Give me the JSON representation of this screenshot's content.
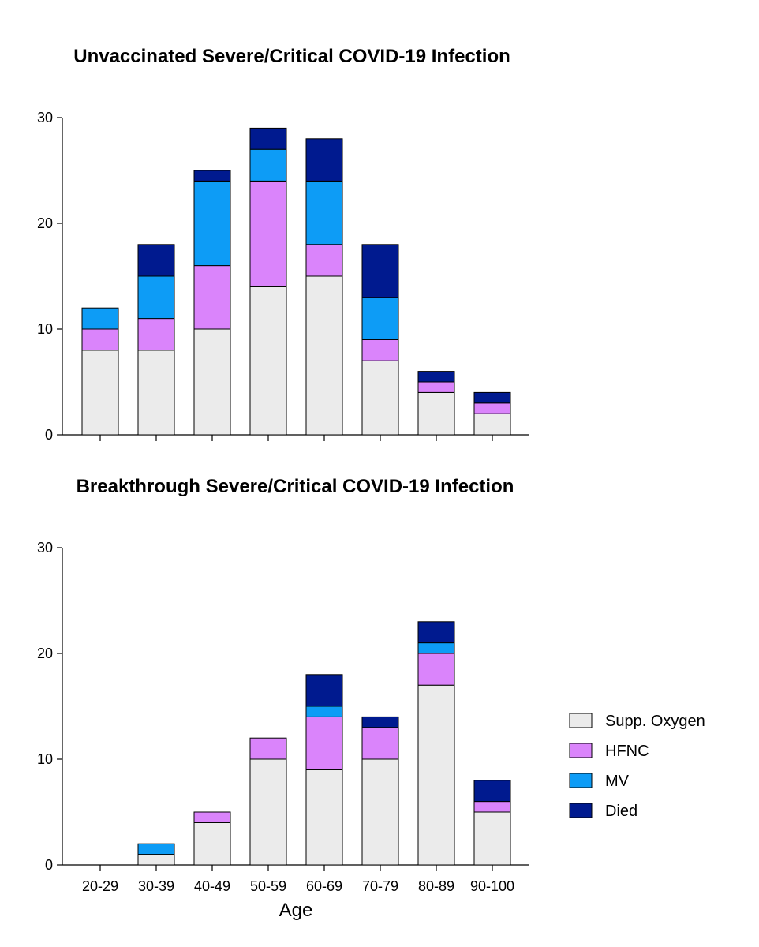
{
  "chart_data": [
    {
      "type": "bar",
      "stacked": true,
      "title": "Unvaccinated Severe/Critical COVID-19 Infection",
      "categories": [
        "20-29",
        "30-39",
        "40-49",
        "50-59",
        "60-69",
        "70-79",
        "80-89",
        "90-100"
      ],
      "show_category_labels": false,
      "ylim": [
        0,
        30
      ],
      "yticks": [
        0,
        10,
        20,
        30
      ],
      "xlabel": "",
      "ylabel": "",
      "grid": false,
      "series": [
        {
          "name": "Supp. Oxygen",
          "color": "#ebebeb",
          "values": [
            8,
            8,
            10,
            14,
            15,
            7,
            4,
            2
          ]
        },
        {
          "name": "HFNC",
          "color": "#da84fb",
          "values": [
            2,
            3,
            6,
            10,
            3,
            2,
            1,
            1
          ]
        },
        {
          "name": "MV",
          "color": "#0d9cf6",
          "values": [
            2,
            4,
            8,
            3,
            6,
            4,
            0,
            0
          ]
        },
        {
          "name": "Died",
          "color": "#001a8f",
          "values": [
            0,
            3,
            1,
            2,
            4,
            5,
            1,
            1
          ]
        }
      ]
    },
    {
      "type": "bar",
      "stacked": true,
      "title": "Breakthrough Severe/Critical COVID-19 Infection",
      "categories": [
        "20-29",
        "30-39",
        "40-49",
        "50-59",
        "60-69",
        "70-79",
        "80-89",
        "90-100"
      ],
      "show_category_labels": true,
      "ylim": [
        0,
        30
      ],
      "yticks": [
        0,
        10,
        20,
        30
      ],
      "xlabel": "Age",
      "ylabel": "",
      "grid": false,
      "legend": "right",
      "series": [
        {
          "name": "Supp. Oxygen",
          "color": "#ebebeb",
          "values": [
            0,
            1,
            4,
            10,
            9,
            10,
            17,
            5
          ]
        },
        {
          "name": "HFNC",
          "color": "#da84fb",
          "values": [
            0,
            0,
            1,
            2,
            5,
            3,
            3,
            1
          ]
        },
        {
          "name": "MV",
          "color": "#0d9cf6",
          "values": [
            0,
            1,
            0,
            0,
            1,
            0,
            1,
            0
          ]
        },
        {
          "name": "Died",
          "color": "#001a8f",
          "values": [
            0,
            0,
            0,
            0,
            3,
            1,
            2,
            2
          ]
        }
      ]
    }
  ]
}
